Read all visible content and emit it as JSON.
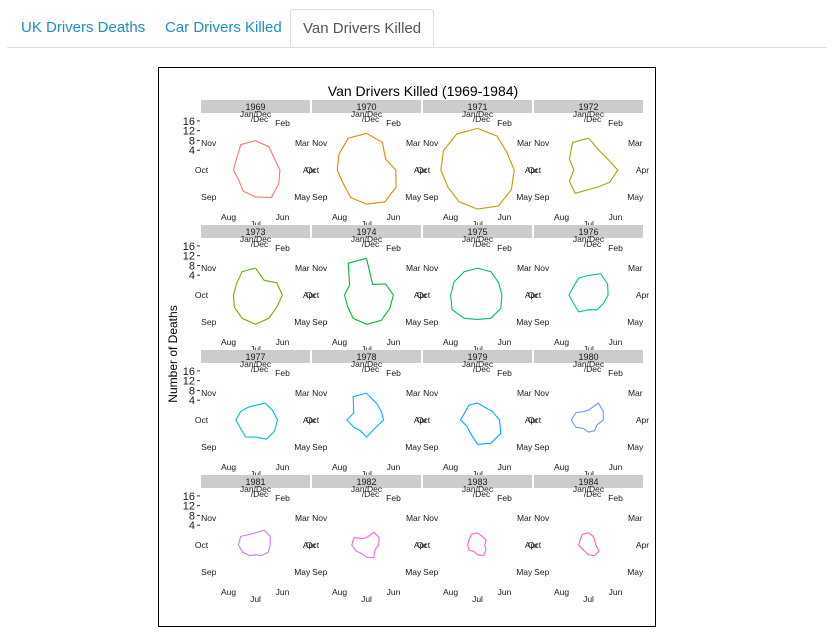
{
  "tabs": [
    {
      "label": "UK Drivers Deaths",
      "active": false
    },
    {
      "label": "Car Drivers Killed",
      "active": false
    },
    {
      "label": "Van Drivers Killed",
      "active": true
    }
  ],
  "chart_data": {
    "type": "line",
    "coordinate_system": "polar",
    "title": "Van Drivers Killed (1969-1984)",
    "ylabel": "Number of Deaths",
    "radial_ticks": [
      4,
      8,
      12,
      16
    ],
    "radial_range": [
      0,
      18
    ],
    "month_labels": [
      "Jan/Dec",
      "Feb",
      "Mar",
      "Apr",
      "May",
      "Jun",
      "Jul",
      "Aug",
      "Sep",
      "Oct",
      "Nov",
      "/Dec"
    ],
    "panels": [
      {
        "year": "1969",
        "color": "#f8766d",
        "values": [
          12,
          11,
          9,
          10,
          11,
          13,
          11,
          10,
          8,
          9,
          9,
          12
        ]
      },
      {
        "year": "1970",
        "color": "#e58700",
        "values": [
          15,
          13,
          9,
          12,
          14,
          15,
          14,
          13,
          11,
          12,
          13,
          15
        ]
      },
      {
        "year": "1971",
        "color": "#c99800",
        "values": [
          17,
          16,
          14,
          15,
          16,
          17,
          16,
          15,
          14,
          15,
          16,
          17
        ]
      },
      {
        "year": "1972",
        "color": "#a3a500",
        "values": [
          13,
          9,
          9,
          12,
          10,
          8,
          8,
          11,
          9,
          6,
          9,
          13
        ]
      },
      {
        "year": "1973",
        "color": "#6bb100",
        "values": [
          11,
          7,
          10,
          11,
          10,
          11,
          12,
          11,
          10,
          9,
          9,
          11
        ]
      },
      {
        "year": "1974",
        "color": "#00ba38",
        "values": [
          15,
          5,
          9,
          11,
          11,
          12,
          12,
          11,
          9,
          9,
          8,
          15
        ]
      },
      {
        "year": "1975",
        "color": "#00be67",
        "values": [
          11,
          11,
          10,
          10,
          11,
          11,
          10,
          11,
          12,
          11,
          11,
          11
        ]
      },
      {
        "year": "1976",
        "color": "#00c19a",
        "values": [
          8,
          10,
          9,
          8,
          7,
          7,
          6,
          8,
          7,
          8,
          7,
          8
        ]
      },
      {
        "year": "1977",
        "color": "#00bfc4",
        "values": [
          6,
          8,
          8,
          9,
          9,
          9,
          7,
          8,
          7,
          8,
          7,
          6
        ]
      },
      {
        "year": "1978",
        "color": "#00b9e3",
        "values": [
          11,
          8,
          7,
          7,
          5,
          5,
          7,
          5,
          6,
          8,
          6,
          11
        ]
      },
      {
        "year": "1979",
        "color": "#00a9ff",
        "values": [
          7,
          6,
          7,
          9,
          11,
          11,
          10,
          6,
          5,
          7,
          6,
          7
        ]
      },
      {
        "year": "1980",
        "color": "#619cff",
        "values": [
          4,
          8,
          7,
          6,
          4,
          5,
          5,
          4,
          6,
          7,
          6,
          4
        ]
      },
      {
        "year": "1981",
        "color": "#c77cff",
        "values": [
          5,
          7,
          7,
          6,
          6,
          5,
          4,
          5,
          6,
          7,
          7,
          5
        ]
      },
      {
        "year": "1982",
        "color": "#e76bf3",
        "values": [
          3,
          6,
          6,
          5,
          4,
          6,
          5,
          4,
          5,
          6,
          6,
          3
        ]
      },
      {
        "year": "1983",
        "color": "#fa62db",
        "values": [
          5,
          4,
          4,
          3,
          4,
          5,
          4,
          3,
          4,
          4,
          4,
          5
        ]
      },
      {
        "year": "1984",
        "color": "#ff62bc",
        "values": [
          5,
          4,
          3,
          3,
          5,
          5,
          4,
          3,
          3,
          4,
          4,
          5
        ]
      }
    ]
  }
}
